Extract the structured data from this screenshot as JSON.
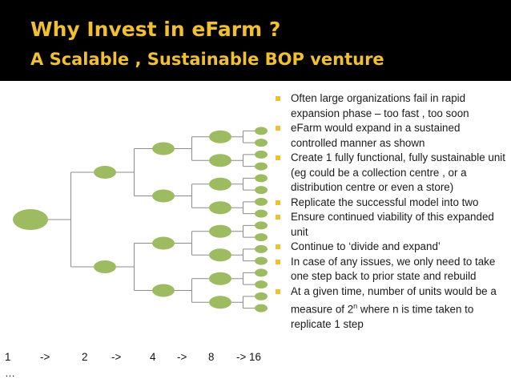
{
  "slide": {
    "title": "Why Invest in eFarm ?",
    "subtitle": "A Scalable , Sustainable BOP venture"
  },
  "bullets": [
    "Often large organizations fail in rapid expansion phase – too fast , too soon",
    "eFarm would expand in a sustained controlled manner as shown",
    "Create 1 fully functional, fully sustainable unit (eg could be a collection centre , or a distribution centre or even a store)",
    "Replicate the successful model into two",
    "Ensure continued viability of this expanded unit",
    "Continue to ‘divide and expand’",
    "In case of any issues, we only need to take one step back to prior state and rebuild",
    {
      "text": "At a given time, number of units would be a measure of 2",
      "superscript": "n",
      "text_after": " where n is time taken to replicate 1 step"
    }
  ],
  "sequence": [
    "1",
    "->",
    "2",
    "->",
    "4",
    "->",
    "8",
    "-> 16"
  ],
  "sequence_ellipsis": "…",
  "colors": {
    "header_background": "#000000",
    "title_text": "#f0bf32",
    "bullet_marker": "#f0bf32",
    "node_fill": "#9dbb61",
    "connector_line": "#8c8c8c"
  },
  "diagram": {
    "levels": 5,
    "branching": 2
  }
}
